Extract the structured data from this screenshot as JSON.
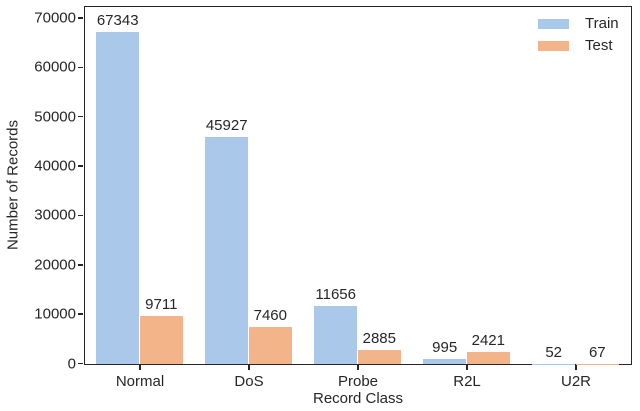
{
  "figure": {
    "background": "#ffffff",
    "spine_color": "#262626",
    "text_color": "#262626"
  },
  "chart_data": {
    "type": "bar",
    "title": "",
    "xlabel": "Record Class",
    "ylabel": "Number of Records",
    "categories": [
      "Normal",
      "DoS",
      "Probe",
      "R2L",
      "U2R"
    ],
    "series": [
      {
        "name": "Train",
        "color": "#aac8ea",
        "values": [
          67343,
          45927,
          11656,
          995,
          52
        ]
      },
      {
        "name": "Test",
        "color": "#f2b488",
        "values": [
          9711,
          7460,
          2885,
          2421,
          67
        ]
      }
    ],
    "bar_value_labels": [
      [
        "67343",
        "45927",
        "11656",
        "995",
        "52"
      ],
      [
        "9711",
        "7460",
        "2885",
        "2421",
        "67"
      ]
    ],
    "ylim": [
      0,
      72500
    ],
    "yticks": [
      0,
      10000,
      20000,
      30000,
      40000,
      50000,
      60000,
      70000
    ],
    "grid": false,
    "legend_position": "upper right",
    "legend_labels": [
      "Train",
      "Test"
    ]
  }
}
